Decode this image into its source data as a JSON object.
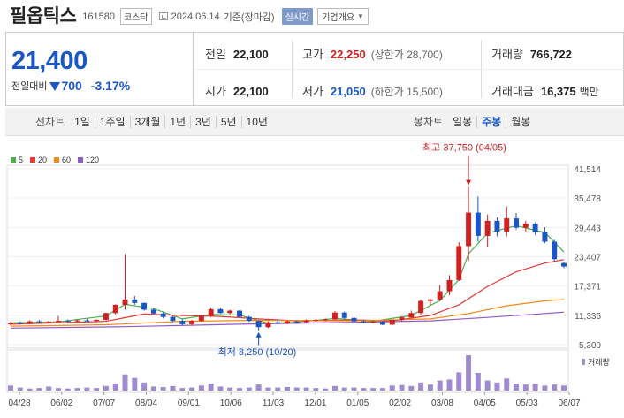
{
  "header": {
    "name": "필옵틱스",
    "code": "161580",
    "market": "코스닥",
    "date": "2024.06.14",
    "basis": "기준(장마감)",
    "live_label": "실시간",
    "company_info_label": "기업개요"
  },
  "summary": {
    "price": "21,400",
    "change_label": "전일대비",
    "change_value": "700",
    "change_pct": "-3.17%",
    "prev_close": {
      "label": "전일",
      "value": "22,100"
    },
    "open": {
      "label": "시가",
      "value": "22,100"
    },
    "high": {
      "label": "고가",
      "value": "22,250",
      "sub": "(상한가 28,700)"
    },
    "low": {
      "label": "저가",
      "value": "21,050",
      "sub": "(하한가 15,500)"
    },
    "volume": {
      "label": "거래량",
      "value": "766,722"
    },
    "amount": {
      "label": "거래대금",
      "value": "16,375",
      "unit": "백만"
    }
  },
  "toolbar": {
    "line_label": "선차트",
    "line_periods": [
      "1일",
      "1주일",
      "3개월",
      "1년",
      "3년",
      "5년",
      "10년"
    ],
    "candle_label": "봉차트",
    "candle_periods": [
      "일봉",
      "주봉",
      "월봉"
    ],
    "active": "주봉"
  },
  "colors": {
    "up": "#d02020",
    "down": "#1a56c4",
    "ma5": "#4caf50",
    "ma20": "#e53935",
    "ma60": "#ef8a18",
    "ma120": "#8e5bc7",
    "volume": "#a08bd0"
  },
  "chart_data": {
    "type": "candlestick",
    "legend": [
      "5",
      "20",
      "60",
      "120"
    ],
    "y_ticks": [
      41514,
      35478,
      29443,
      23407,
      17371,
      11336,
      5300
    ],
    "ylim": [
      5300,
      41514
    ],
    "x_labels": [
      "04/28",
      "06/02",
      "07/07",
      "08/04",
      "09/01",
      "10/06",
      "11/03",
      "12/01",
      "01/05",
      "02/02",
      "03/08",
      "04/05",
      "05/03",
      "06/07"
    ],
    "volume_label": "거래량",
    "annotations": {
      "high": {
        "text": "최고 37,750 (04/05)",
        "value": 37750
      },
      "low": {
        "text": "최저 8,250 (10/20)",
        "value": 8250
      }
    },
    "candles": [
      {
        "o": 9500,
        "h": 10000,
        "l": 9200,
        "c": 9800
      },
      {
        "o": 9800,
        "h": 10100,
        "l": 9400,
        "c": 9600
      },
      {
        "o": 9600,
        "h": 10300,
        "l": 9500,
        "c": 10100
      },
      {
        "o": 10100,
        "h": 10400,
        "l": 9800,
        "c": 9900
      },
      {
        "o": 9900,
        "h": 10200,
        "l": 9700,
        "c": 10000
      },
      {
        "o": 10000,
        "h": 11200,
        "l": 9900,
        "c": 10200
      },
      {
        "o": 10200,
        "h": 10500,
        "l": 9900,
        "c": 10100
      },
      {
        "o": 10100,
        "h": 10400,
        "l": 9900,
        "c": 10300
      },
      {
        "o": 10300,
        "h": 10600,
        "l": 10000,
        "c": 10200
      },
      {
        "o": 10200,
        "h": 10500,
        "l": 9900,
        "c": 10400
      },
      {
        "o": 10400,
        "h": 11900,
        "l": 10300,
        "c": 11800
      },
      {
        "o": 11800,
        "h": 13600,
        "l": 11500,
        "c": 13500
      },
      {
        "o": 13500,
        "h": 24000,
        "l": 12500,
        "c": 14600
      },
      {
        "o": 14600,
        "h": 15300,
        "l": 13500,
        "c": 13900
      },
      {
        "o": 13900,
        "h": 13950,
        "l": 12300,
        "c": 12500
      },
      {
        "o": 12500,
        "h": 12800,
        "l": 11500,
        "c": 11700
      },
      {
        "o": 11700,
        "h": 12000,
        "l": 10700,
        "c": 11000
      },
      {
        "o": 11000,
        "h": 11200,
        "l": 10000,
        "c": 10200
      },
      {
        "o": 10200,
        "h": 10600,
        "l": 9300,
        "c": 9500
      },
      {
        "o": 9500,
        "h": 10400,
        "l": 9200,
        "c": 10200
      },
      {
        "o": 10200,
        "h": 11400,
        "l": 10000,
        "c": 11200
      },
      {
        "o": 11200,
        "h": 12900,
        "l": 11000,
        "c": 12600
      },
      {
        "o": 12600,
        "h": 12900,
        "l": 11700,
        "c": 11800
      },
      {
        "o": 11800,
        "h": 12500,
        "l": 11600,
        "c": 12300
      },
      {
        "o": 12300,
        "h": 12400,
        "l": 10900,
        "c": 11000
      },
      {
        "o": 11000,
        "h": 11200,
        "l": 10000,
        "c": 10200
      },
      {
        "o": 10200,
        "h": 10300,
        "l": 8250,
        "c": 8900
      },
      {
        "o": 8900,
        "h": 10100,
        "l": 8700,
        "c": 9900
      },
      {
        "o": 9900,
        "h": 10500,
        "l": 9500,
        "c": 9700
      },
      {
        "o": 9700,
        "h": 10300,
        "l": 9500,
        "c": 10100
      },
      {
        "o": 10100,
        "h": 10300,
        "l": 9700,
        "c": 9900
      },
      {
        "o": 9900,
        "h": 10500,
        "l": 9800,
        "c": 10300
      },
      {
        "o": 10300,
        "h": 10600,
        "l": 10000,
        "c": 10400
      },
      {
        "o": 10400,
        "h": 10700,
        "l": 10100,
        "c": 10500
      },
      {
        "o": 10500,
        "h": 12200,
        "l": 10400,
        "c": 11900
      },
      {
        "o": 11900,
        "h": 12100,
        "l": 10600,
        "c": 10800
      },
      {
        "o": 10800,
        "h": 11000,
        "l": 9900,
        "c": 10100
      },
      {
        "o": 10100,
        "h": 10400,
        "l": 9800,
        "c": 9900
      },
      {
        "o": 9900,
        "h": 10300,
        "l": 9700,
        "c": 10000
      },
      {
        "o": 10000,
        "h": 10100,
        "l": 9300,
        "c": 9400
      },
      {
        "o": 9400,
        "h": 10500,
        "l": 9300,
        "c": 10400
      },
      {
        "o": 10400,
        "h": 11100,
        "l": 10200,
        "c": 10900
      },
      {
        "o": 10900,
        "h": 12300,
        "l": 10700,
        "c": 11800
      },
      {
        "o": 11800,
        "h": 14600,
        "l": 11500,
        "c": 14300
      },
      {
        "o": 14300,
        "h": 14800,
        "l": 13400,
        "c": 14600
      },
      {
        "o": 14600,
        "h": 17600,
        "l": 14300,
        "c": 16300
      },
      {
        "o": 16300,
        "h": 19600,
        "l": 15500,
        "c": 18600
      },
      {
        "o": 18600,
        "h": 26400,
        "l": 18400,
        "c": 25600
      },
      {
        "o": 25600,
        "h": 37750,
        "l": 22500,
        "c": 32500
      },
      {
        "o": 32500,
        "h": 35800,
        "l": 26500,
        "c": 27700
      },
      {
        "o": 27700,
        "h": 32100,
        "l": 25300,
        "c": 30800
      },
      {
        "o": 30800,
        "h": 31500,
        "l": 27600,
        "c": 28600
      },
      {
        "o": 28600,
        "h": 33800,
        "l": 27600,
        "c": 31300
      },
      {
        "o": 31300,
        "h": 32400,
        "l": 29000,
        "c": 29400
      },
      {
        "o": 29400,
        "h": 30800,
        "l": 28600,
        "c": 30200
      },
      {
        "o": 30200,
        "h": 30500,
        "l": 27900,
        "c": 28500
      },
      {
        "o": 28500,
        "h": 29500,
        "l": 26200,
        "c": 26500
      },
      {
        "o": 26500,
        "h": 26900,
        "l": 22500,
        "c": 22900
      },
      {
        "o": 22100,
        "h": 22250,
        "l": 21050,
        "c": 21400
      }
    ],
    "ma": {
      "5": [
        [
          0,
          9800
        ],
        [
          5,
          10000
        ],
        [
          10,
          11200
        ],
        [
          12,
          13600
        ],
        [
          15,
          12700
        ],
        [
          18,
          10600
        ],
        [
          21,
          11500
        ],
        [
          24,
          11400
        ],
        [
          27,
          9700
        ],
        [
          30,
          9900
        ],
        [
          34,
          10700
        ],
        [
          38,
          10100
        ],
        [
          42,
          11300
        ],
        [
          45,
          14400
        ],
        [
          47,
          18700
        ],
        [
          48,
          24000
        ],
        [
          50,
          28300
        ],
        [
          53,
          29800
        ],
        [
          56,
          28400
        ],
        [
          58,
          24400
        ]
      ],
      "20": [
        [
          0,
          9500
        ],
        [
          10,
          10100
        ],
        [
          14,
          11600
        ],
        [
          18,
          11300
        ],
        [
          22,
          11100
        ],
        [
          26,
          10600
        ],
        [
          30,
          10200
        ],
        [
          36,
          10400
        ],
        [
          40,
          10200
        ],
        [
          44,
          11300
        ],
        [
          47,
          13500
        ],
        [
          50,
          17300
        ],
        [
          53,
          20300
        ],
        [
          56,
          22100
        ],
        [
          58,
          22800
        ]
      ],
      "60": [
        [
          0,
          9100
        ],
        [
          10,
          9400
        ],
        [
          18,
          10100
        ],
        [
          26,
          10300
        ],
        [
          36,
          10200
        ],
        [
          44,
          10600
        ],
        [
          48,
          11700
        ],
        [
          52,
          13300
        ],
        [
          56,
          14300
        ],
        [
          58,
          14600
        ]
      ],
      "120": [
        [
          0,
          8700
        ],
        [
          12,
          9000
        ],
        [
          24,
          9500
        ],
        [
          36,
          9900
        ],
        [
          44,
          10200
        ],
        [
          50,
          10900
        ],
        [
          56,
          11700
        ],
        [
          58,
          12000
        ]
      ]
    },
    "volume": [
      10,
      6,
      4,
      5,
      8,
      5,
      4,
      5,
      6,
      5,
      9,
      14,
      32,
      25,
      16,
      8,
      7,
      9,
      5,
      6,
      10,
      14,
      8,
      6,
      5,
      6,
      12,
      6,
      6,
      7,
      6,
      6,
      5,
      4,
      9,
      6,
      6,
      5,
      5,
      5,
      10,
      11,
      9,
      16,
      12,
      20,
      22,
      36,
      70,
      35,
      20,
      16,
      24,
      14,
      12,
      14,
      10,
      12,
      10
    ]
  }
}
